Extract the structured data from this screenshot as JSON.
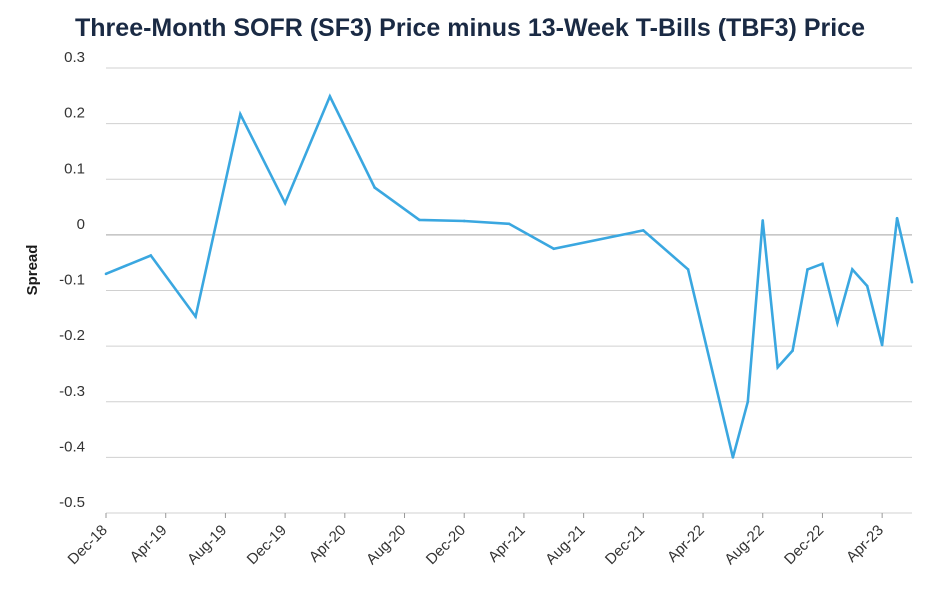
{
  "chart_data": {
    "type": "line",
    "title": "Three-Month SOFR (SF3) Price minus 13-Week T-Bills (TBF3) Price",
    "xlabel": "",
    "ylabel": "Spread",
    "ylim": [
      -0.5,
      0.3
    ],
    "yticks": [
      0.3,
      0.2,
      0.1,
      0,
      -0.1,
      -0.2,
      -0.3,
      -0.4,
      -0.5
    ],
    "ytick_labels": [
      "0.3",
      "0.2",
      "0.1",
      "0",
      "-0.1",
      "-0.2",
      "-0.3",
      "-0.4",
      "-0.5"
    ],
    "xtick_labels": [
      "Dec-18",
      "Apr-19",
      "Aug-19",
      "Dec-19",
      "Apr-20",
      "Aug-20",
      "Dec-20",
      "Apr-21",
      "Aug-21",
      "Dec-21",
      "Apr-22",
      "Aug-22",
      "Dec-22",
      "Apr-23"
    ],
    "x_month_range": [
      "Dec-18",
      "Jun-23"
    ],
    "grid": "horizontal",
    "series": [
      {
        "color": "#3aa7e0",
        "points": [
          {
            "x": "Dec-18",
            "y": -0.07
          },
          {
            "x": "Mar-19",
            "y": -0.037
          },
          {
            "x": "Jun-19",
            "y": -0.147
          },
          {
            "x": "Sep-19",
            "y": 0.217
          },
          {
            "x": "Dec-19",
            "y": 0.057
          },
          {
            "x": "Mar-20",
            "y": 0.249
          },
          {
            "x": "Jun-20",
            "y": 0.085
          },
          {
            "x": "Sep-20",
            "y": 0.027
          },
          {
            "x": "Dec-20",
            "y": 0.025
          },
          {
            "x": "Mar-21",
            "y": 0.02
          },
          {
            "x": "Jun-21",
            "y": -0.025
          },
          {
            "x": "Dec-21",
            "y": 0.008
          },
          {
            "x": "Mar-22",
            "y": -0.062
          },
          {
            "x": "Jun-22",
            "y": -0.4
          },
          {
            "x": "Jul-22",
            "y": -0.3
          },
          {
            "x": "Aug-22",
            "y": 0.026
          },
          {
            "x": "Sep-22",
            "y": -0.238
          },
          {
            "x": "Oct-22",
            "y": -0.208
          },
          {
            "x": "Nov-22",
            "y": -0.062
          },
          {
            "x": "Dec-22",
            "y": -0.052
          },
          {
            "x": "Jan-23",
            "y": -0.158
          },
          {
            "x": "Feb-23",
            "y": -0.062
          },
          {
            "x": "Mar-23",
            "y": -0.092
          },
          {
            "x": "Apr-23",
            "y": -0.198
          },
          {
            "x": "May-23",
            "y": 0.03
          },
          {
            "x": "Jun-23",
            "y": -0.085
          }
        ]
      }
    ]
  }
}
